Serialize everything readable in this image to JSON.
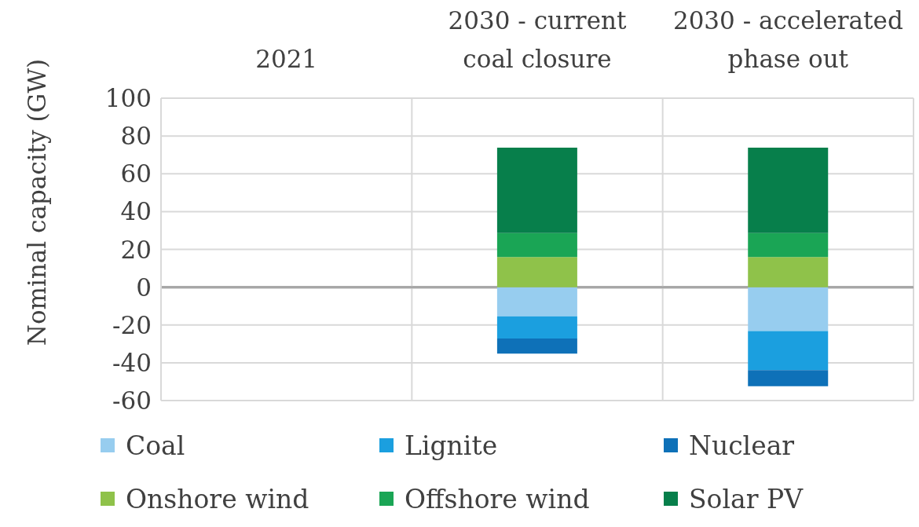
{
  "chart_data": {
    "type": "bar",
    "stacked": true,
    "categories": [
      "2021",
      "2030 - current coal closure",
      "2030 - accelerated phase out"
    ],
    "series": [
      {
        "name": "Coal",
        "color": "#97cdef",
        "values": [
          null,
          -15.4,
          -23.2
        ]
      },
      {
        "name": "Lignite",
        "color": "#1b9fdf",
        "values": [
          null,
          -11.8,
          -20.7
        ]
      },
      {
        "name": "Nuclear",
        "color": "#0e71b8",
        "values": [
          null,
          -8,
          -8.5
        ]
      },
      {
        "name": "Onshore wind",
        "color": "#8fc24a",
        "values": [
          null,
          16,
          16
        ]
      },
      {
        "name": "Offshore wind",
        "color": "#1aa555",
        "values": [
          null,
          12.6,
          12.6
        ]
      },
      {
        "name": "Solar PV",
        "color": "#077f4b",
        "values": [
          null,
          45.2,
          45.2
        ]
      }
    ],
    "ylabel": "Nominal capacity (GW)",
    "ylim": [
      -60,
      100
    ],
    "yticks": [
      -60,
      -40,
      -20,
      0,
      20,
      40,
      60,
      80,
      100
    ],
    "grid": true,
    "legend": "bottom"
  }
}
